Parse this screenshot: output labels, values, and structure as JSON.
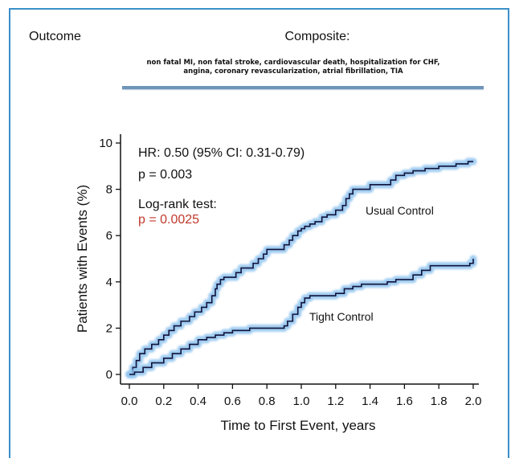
{
  "header": {
    "outcome_label": "Outcome",
    "composite_label": "Composite:",
    "composite_detail_line1": "non fatal MI, non fatal stroke, cardiovascular death, hospitalization for CHF,",
    "composite_detail_line2": "angina, coronary revascularization,  atrial fibrillation,  TIA"
  },
  "annotations": {
    "hr": "HR: 0.50 (95% CI: 0.31-0.79)",
    "p_value": "p = 0.003",
    "logrank_label": "Log-rank test:",
    "logrank_p": "p = 0.0025"
  },
  "colors": {
    "frame": "#3b8fc9",
    "curve": "#10123a",
    "glow": "#8fc3ee",
    "logrank_p": "#c0392b"
  },
  "chart_data": {
    "type": "line",
    "xlabel": "Time to First Event, years",
    "ylabel": "Patients with Events (%)",
    "xlim": [
      0,
      2.0
    ],
    "ylim": [
      0,
      10
    ],
    "xticks": [
      "0.0",
      "0.2",
      "0.4",
      "0.6",
      "0.8",
      "1.0",
      "1.2",
      "1.4",
      "1.6",
      "1.8",
      "2.0"
    ],
    "yticks": [
      "0",
      "2",
      "4",
      "6",
      "8",
      "10"
    ],
    "series": [
      {
        "name": "Usual Control",
        "x": [
          0,
          0.02,
          0.04,
          0.06,
          0.09,
          0.13,
          0.17,
          0.2,
          0.23,
          0.26,
          0.3,
          0.35,
          0.38,
          0.42,
          0.45,
          0.48,
          0.5,
          0.51,
          0.53,
          0.55,
          0.6,
          0.62,
          0.65,
          0.72,
          0.75,
          0.78,
          0.8,
          0.84,
          0.9,
          0.93,
          0.95,
          0.98,
          1.0,
          1.02,
          1.05,
          1.08,
          1.12,
          1.15,
          1.2,
          1.24,
          1.26,
          1.28,
          1.3,
          1.33,
          1.4,
          1.45,
          1.52,
          1.55,
          1.6,
          1.65,
          1.72,
          1.8,
          1.9,
          1.97,
          2.0
        ],
        "y": [
          0,
          0.3,
          0.6,
          0.9,
          1.1,
          1.3,
          1.5,
          1.7,
          1.9,
          2.1,
          2.3,
          2.5,
          2.7,
          2.9,
          3.1,
          3.4,
          3.7,
          3.9,
          4.1,
          4.2,
          4.2,
          4.4,
          4.6,
          4.8,
          5.0,
          5.2,
          5.4,
          5.4,
          5.6,
          5.8,
          6.0,
          6.2,
          6.3,
          6.4,
          6.5,
          6.6,
          6.8,
          6.9,
          7.1,
          7.3,
          7.6,
          7.8,
          8.0,
          8.0,
          8.2,
          8.2,
          8.4,
          8.6,
          8.7,
          8.8,
          8.9,
          9.0,
          9.1,
          9.2,
          9.2
        ]
      },
      {
        "name": "Tight Control",
        "x": [
          0,
          0.03,
          0.08,
          0.13,
          0.2,
          0.25,
          0.3,
          0.35,
          0.4,
          0.45,
          0.5,
          0.55,
          0.6,
          0.7,
          0.9,
          0.92,
          0.95,
          0.98,
          1.0,
          1.02,
          1.05,
          1.2,
          1.25,
          1.3,
          1.35,
          1.5,
          1.55,
          1.65,
          1.7,
          1.75,
          1.98,
          2.0
        ],
        "y": [
          0,
          0.1,
          0.3,
          0.5,
          0.7,
          0.9,
          1.1,
          1.3,
          1.5,
          1.6,
          1.7,
          1.8,
          1.9,
          2.0,
          2.1,
          2.3,
          2.6,
          2.9,
          3.1,
          3.3,
          3.4,
          3.5,
          3.7,
          3.8,
          3.9,
          4.0,
          4.1,
          4.3,
          4.5,
          4.7,
          4.8,
          5.0
        ]
      }
    ]
  }
}
